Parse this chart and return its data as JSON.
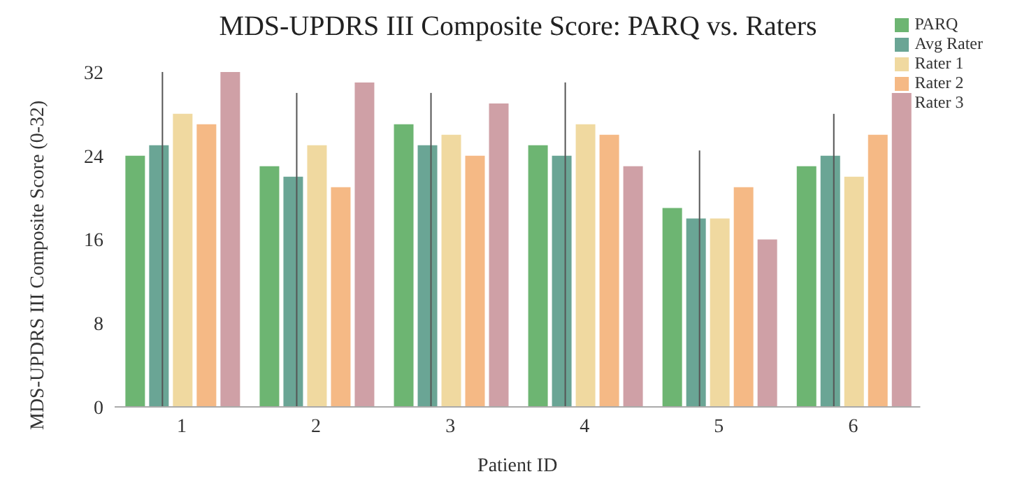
{
  "chart_data": {
    "type": "bar",
    "title": "MDS-UPDRS III Composite Score: PARQ vs. Raters",
    "xlabel": "Patient ID",
    "ylabel": "MDS-UPDRS III Composite Score (0-32)",
    "categories": [
      "1",
      "2",
      "3",
      "4",
      "5",
      "6"
    ],
    "series": [
      {
        "name": "PARQ",
        "color": "#6db572",
        "values": [
          24,
          23,
          27,
          25,
          19,
          23
        ]
      },
      {
        "name": "Avg Rater",
        "color": "#6aa595",
        "values": [
          25,
          22,
          25,
          24,
          18,
          24
        ]
      },
      {
        "name": "Rater 1",
        "color": "#f0d9a0",
        "values": [
          28,
          25,
          26,
          27,
          18,
          22
        ]
      },
      {
        "name": "Rater 2",
        "color": "#f5b985",
        "values": [
          27,
          21,
          24,
          26,
          21,
          26
        ]
      },
      {
        "name": "Rater 3",
        "color": "#cfa0a6",
        "values": [
          32,
          31,
          29,
          23,
          16,
          30
        ]
      },
      {
        "type": "bar",
        "color": "#555555",
        "values": [
          32,
          30,
          30,
          31,
          24.5,
          28
        ]
      }
    ],
    "ylim": [
      0,
      33
    ],
    "yticks": [
      0,
      8,
      16,
      24,
      32
    ],
    "grid": false,
    "legend": "top right"
  }
}
